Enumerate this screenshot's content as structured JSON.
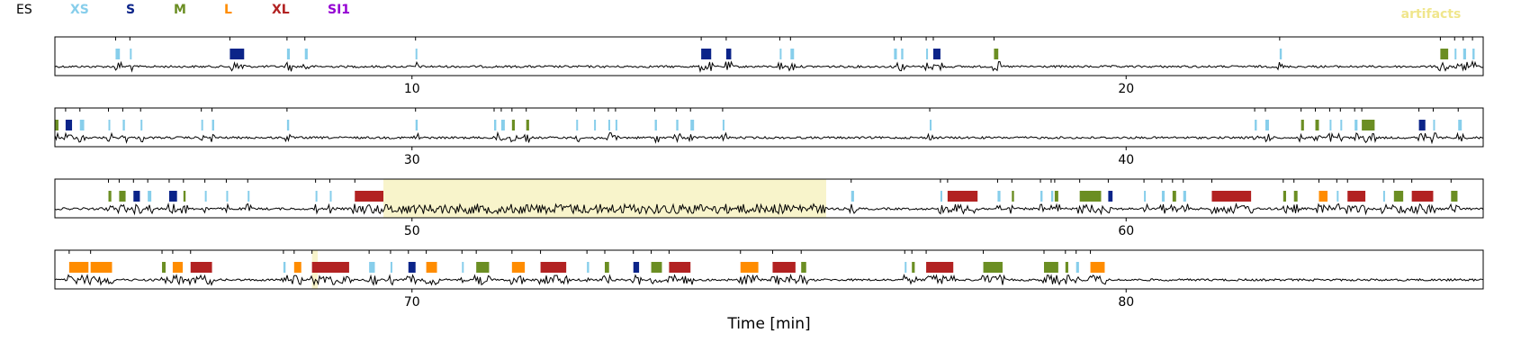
{
  "chart_data": {
    "type": "event-raster",
    "xlabel": "Time [min]",
    "x_unit": "min",
    "legend": [
      {
        "label": "ES",
        "color": "#000000"
      },
      {
        "label": "XS",
        "color": "#87ceeb"
      },
      {
        "label": "S",
        "color": "#0b2489"
      },
      {
        "label": "M",
        "color": "#6b8e23"
      },
      {
        "label": "L",
        "color": "#ff8c00"
      },
      {
        "label": "XL",
        "color": "#b22222"
      },
      {
        "label": "SI1",
        "color": "#9400d3"
      }
    ],
    "artifacts_label": "artifacts",
    "artifacts_color": "#f0e68c",
    "rows": [
      {
        "xlim": [
          5,
          25
        ],
        "ticks": [
          10,
          20
        ],
        "events": [
          {
            "t": 5.85,
            "d": 0.06,
            "type": "XS"
          },
          {
            "t": 6.05,
            "d": 0.02,
            "type": "XS"
          },
          {
            "t": 7.45,
            "d": 0.2,
            "type": "S"
          },
          {
            "t": 8.25,
            "d": 0.04,
            "type": "XS"
          },
          {
            "t": 8.5,
            "d": 0.04,
            "type": "XS"
          },
          {
            "t": 10.05,
            "d": 0.02,
            "type": "XS"
          },
          {
            "t": 14.05,
            "d": 0.14,
            "type": "S"
          },
          {
            "t": 14.4,
            "d": 0.07,
            "type": "S"
          },
          {
            "t": 15.15,
            "d": 0.02,
            "type": "XS"
          },
          {
            "t": 15.3,
            "d": 0.05,
            "type": "XS"
          },
          {
            "t": 16.75,
            "d": 0.04,
            "type": "XS"
          },
          {
            "t": 16.85,
            "d": 0.03,
            "type": "XS"
          },
          {
            "t": 17.2,
            "d": 0.02,
            "type": "XS"
          },
          {
            "t": 17.3,
            "d": 0.1,
            "type": "S"
          },
          {
            "t": 18.15,
            "d": 0.06,
            "type": "M"
          },
          {
            "t": 22.15,
            "d": 0.03,
            "type": "XS"
          },
          {
            "t": 24.4,
            "d": 0.11,
            "type": "M"
          },
          {
            "t": 24.6,
            "d": 0.02,
            "type": "XS"
          },
          {
            "t": 24.72,
            "d": 0.04,
            "type": "XS"
          },
          {
            "t": 24.85,
            "d": 0.03,
            "type": "XS"
          }
        ],
        "artifacts": []
      },
      {
        "xlim": [
          25,
          45
        ],
        "ticks": [
          30,
          40
        ],
        "events": [
          {
            "t": 25.0,
            "d": 0.05,
            "type": "M"
          },
          {
            "t": 25.15,
            "d": 0.09,
            "type": "S"
          },
          {
            "t": 25.35,
            "d": 0.06,
            "type": "XS"
          },
          {
            "t": 25.75,
            "d": 0.02,
            "type": "XS"
          },
          {
            "t": 25.95,
            "d": 0.03,
            "type": "XS"
          },
          {
            "t": 26.2,
            "d": 0.02,
            "type": "XS"
          },
          {
            "t": 27.05,
            "d": 0.02,
            "type": "XS"
          },
          {
            "t": 27.2,
            "d": 0.03,
            "type": "XS"
          },
          {
            "t": 28.25,
            "d": 0.03,
            "type": "XS"
          },
          {
            "t": 30.05,
            "d": 0.03,
            "type": "XS"
          },
          {
            "t": 31.15,
            "d": 0.03,
            "type": "XS"
          },
          {
            "t": 31.25,
            "d": 0.05,
            "type": "XS"
          },
          {
            "t": 31.4,
            "d": 0.04,
            "type": "M"
          },
          {
            "t": 31.6,
            "d": 0.04,
            "type": "M"
          },
          {
            "t": 32.3,
            "d": 0.02,
            "type": "XS"
          },
          {
            "t": 32.55,
            "d": 0.02,
            "type": "XS"
          },
          {
            "t": 32.75,
            "d": 0.02,
            "type": "XS"
          },
          {
            "t": 32.85,
            "d": 0.02,
            "type": "XS"
          },
          {
            "t": 33.4,
            "d": 0.03,
            "type": "XS"
          },
          {
            "t": 33.7,
            "d": 0.03,
            "type": "XS"
          },
          {
            "t": 33.9,
            "d": 0.05,
            "type": "XS"
          },
          {
            "t": 34.35,
            "d": 0.02,
            "type": "XS"
          },
          {
            "t": 37.25,
            "d": 0.02,
            "type": "XS"
          },
          {
            "t": 41.8,
            "d": 0.03,
            "type": "XS"
          },
          {
            "t": 41.95,
            "d": 0.05,
            "type": "XS"
          },
          {
            "t": 42.45,
            "d": 0.04,
            "type": "M"
          },
          {
            "t": 42.65,
            "d": 0.05,
            "type": "M"
          },
          {
            "t": 42.85,
            "d": 0.02,
            "type": "XS"
          },
          {
            "t": 43.0,
            "d": 0.02,
            "type": "XS"
          },
          {
            "t": 43.2,
            "d": 0.04,
            "type": "XS"
          },
          {
            "t": 43.3,
            "d": 0.18,
            "type": "M"
          },
          {
            "t": 44.1,
            "d": 0.09,
            "type": "S"
          },
          {
            "t": 44.3,
            "d": 0.02,
            "type": "XS"
          },
          {
            "t": 44.65,
            "d": 0.05,
            "type": "XS"
          }
        ],
        "artifacts": []
      },
      {
        "xlim": [
          45,
          65
        ],
        "ticks": [
          50,
          60
        ],
        "events": [
          {
            "t": 45.75,
            "d": 0.04,
            "type": "M"
          },
          {
            "t": 45.9,
            "d": 0.09,
            "type": "M"
          },
          {
            "t": 46.1,
            "d": 0.09,
            "type": "S"
          },
          {
            "t": 46.3,
            "d": 0.05,
            "type": "XS"
          },
          {
            "t": 46.6,
            "d": 0.11,
            "type": "S"
          },
          {
            "t": 46.8,
            "d": 0.03,
            "type": "M"
          },
          {
            "t": 47.1,
            "d": 0.02,
            "type": "XS"
          },
          {
            "t": 47.4,
            "d": 0.02,
            "type": "XS"
          },
          {
            "t": 47.7,
            "d": 0.02,
            "type": "XS"
          },
          {
            "t": 48.65,
            "d": 0.02,
            "type": "XS"
          },
          {
            "t": 48.85,
            "d": 0.02,
            "type": "XS"
          },
          {
            "t": 49.2,
            "d": 0.4,
            "type": "XL"
          },
          {
            "t": 56.15,
            "d": 0.04,
            "type": "XS"
          },
          {
            "t": 57.4,
            "d": 0.02,
            "type": "XS"
          },
          {
            "t": 57.5,
            "d": 0.42,
            "type": "XL"
          },
          {
            "t": 58.2,
            "d": 0.04,
            "type": "XS"
          },
          {
            "t": 58.4,
            "d": 0.03,
            "type": "M"
          },
          {
            "t": 58.8,
            "d": 0.03,
            "type": "XS"
          },
          {
            "t": 58.95,
            "d": 0.03,
            "type": "XS"
          },
          {
            "t": 59.0,
            "d": 0.05,
            "type": "M"
          },
          {
            "t": 59.35,
            "d": 0.3,
            "type": "M"
          },
          {
            "t": 59.75,
            "d": 0.06,
            "type": "S"
          },
          {
            "t": 60.25,
            "d": 0.02,
            "type": "XS"
          },
          {
            "t": 60.5,
            "d": 0.04,
            "type": "XS"
          },
          {
            "t": 60.65,
            "d": 0.05,
            "type": "M"
          },
          {
            "t": 60.8,
            "d": 0.04,
            "type": "XS"
          },
          {
            "t": 61.2,
            "d": 0.55,
            "type": "XL"
          },
          {
            "t": 62.2,
            "d": 0.04,
            "type": "M"
          },
          {
            "t": 62.35,
            "d": 0.05,
            "type": "M"
          },
          {
            "t": 62.7,
            "d": 0.02,
            "type": "XS"
          },
          {
            "t": 62.7,
            "d": 0.12,
            "type": "L"
          },
          {
            "t": 62.95,
            "d": 0.02,
            "type": "XS"
          },
          {
            "t": 63.1,
            "d": 0.25,
            "type": "XL"
          },
          {
            "t": 63.6,
            "d": 0.02,
            "type": "XS"
          },
          {
            "t": 63.75,
            "d": 0.13,
            "type": "M"
          },
          {
            "t": 64.0,
            "d": 0.3,
            "type": "XL"
          },
          {
            "t": 64.55,
            "d": 0.09,
            "type": "M"
          }
        ],
        "artifacts": [
          {
            "start": 49.6,
            "end": 55.8
          }
        ]
      },
      {
        "xlim": [
          65,
          85
        ],
        "ticks": [
          70,
          80
        ],
        "events": [
          {
            "t": 65.2,
            "d": 0.27,
            "type": "L"
          },
          {
            "t": 65.5,
            "d": 0.3,
            "type": "L"
          },
          {
            "t": 66.5,
            "d": 0.05,
            "type": "M"
          },
          {
            "t": 66.65,
            "d": 0.14,
            "type": "L"
          },
          {
            "t": 66.9,
            "d": 0.3,
            "type": "XL"
          },
          {
            "t": 68.2,
            "d": 0.03,
            "type": "XS"
          },
          {
            "t": 68.35,
            "d": 0.1,
            "type": "L"
          },
          {
            "t": 68.6,
            "d": 0.52,
            "type": "XL"
          },
          {
            "t": 69.4,
            "d": 0.08,
            "type": "XS"
          },
          {
            "t": 69.7,
            "d": 0.02,
            "type": "XS"
          },
          {
            "t": 69.95,
            "d": 0.1,
            "type": "S"
          },
          {
            "t": 70.2,
            "d": 0.15,
            "type": "L"
          },
          {
            "t": 70.7,
            "d": 0.02,
            "type": "XS"
          },
          {
            "t": 70.9,
            "d": 0.18,
            "type": "M"
          },
          {
            "t": 71.4,
            "d": 0.18,
            "type": "L"
          },
          {
            "t": 71.8,
            "d": 0.36,
            "type": "XL"
          },
          {
            "t": 72.45,
            "d": 0.03,
            "type": "XS"
          },
          {
            "t": 72.7,
            "d": 0.06,
            "type": "M"
          },
          {
            "t": 73.1,
            "d": 0.08,
            "type": "S"
          },
          {
            "t": 73.35,
            "d": 0.15,
            "type": "M"
          },
          {
            "t": 73.6,
            "d": 0.3,
            "type": "XL"
          },
          {
            "t": 74.6,
            "d": 0.25,
            "type": "L"
          },
          {
            "t": 75.05,
            "d": 0.32,
            "type": "XL"
          },
          {
            "t": 75.45,
            "d": 0.07,
            "type": "M"
          },
          {
            "t": 76.9,
            "d": 0.02,
            "type": "XS"
          },
          {
            "t": 77.0,
            "d": 0.04,
            "type": "M"
          },
          {
            "t": 77.2,
            "d": 0.38,
            "type": "XL"
          },
          {
            "t": 78.0,
            "d": 0.27,
            "type": "M"
          },
          {
            "t": 78.85,
            "d": 0.2,
            "type": "M"
          },
          {
            "t": 79.15,
            "d": 0.04,
            "type": "M"
          },
          {
            "t": 79.3,
            "d": 0.04,
            "type": "XS"
          },
          {
            "t": 79.5,
            "d": 0.2,
            "type": "L"
          }
        ],
        "artifacts": [
          {
            "start": 68.6,
            "end": 68.68
          }
        ]
      }
    ]
  }
}
